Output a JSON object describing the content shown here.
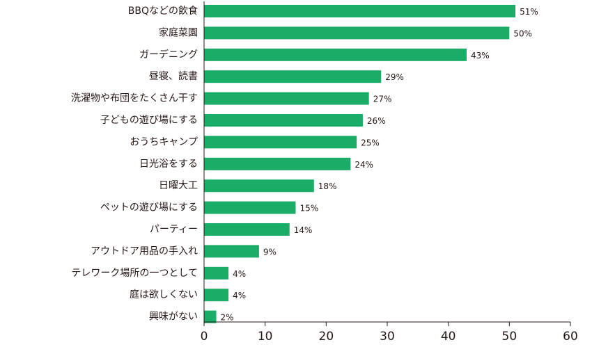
{
  "chart_data": {
    "type": "bar",
    "orientation": "horizontal",
    "categories": [
      "BBQなどの飲食",
      "家庭菜園",
      "ガーデニング",
      "昼寝、読書",
      "洗濯物や布団をたくさん干す",
      "子どもの遊び場にする",
      "おうちキャンプ",
      "日光浴をする",
      "日曜大工",
      "ペットの遊び場にする",
      "パーティー",
      "アウトドア用品の手入れ",
      "テレワーク場所の一つとして",
      "庭は欲しくない",
      "興味がない"
    ],
    "values": [
      51,
      50,
      43,
      29,
      27,
      26,
      25,
      24,
      18,
      15,
      14,
      9,
      4,
      4,
      2
    ],
    "value_labels": [
      "51%",
      "50%",
      "43%",
      "29%",
      "27%",
      "26%",
      "25%",
      "24%",
      "18%",
      "15%",
      "14%",
      "9%",
      "4%",
      "4%",
      "2%"
    ],
    "xlim": [
      0,
      60
    ],
    "xticks": [
      "0",
      "10",
      "20",
      "30",
      "40",
      "50",
      "60"
    ],
    "grid": false,
    "bar_color": "#19ad68",
    "axis_color": "#231815"
  }
}
